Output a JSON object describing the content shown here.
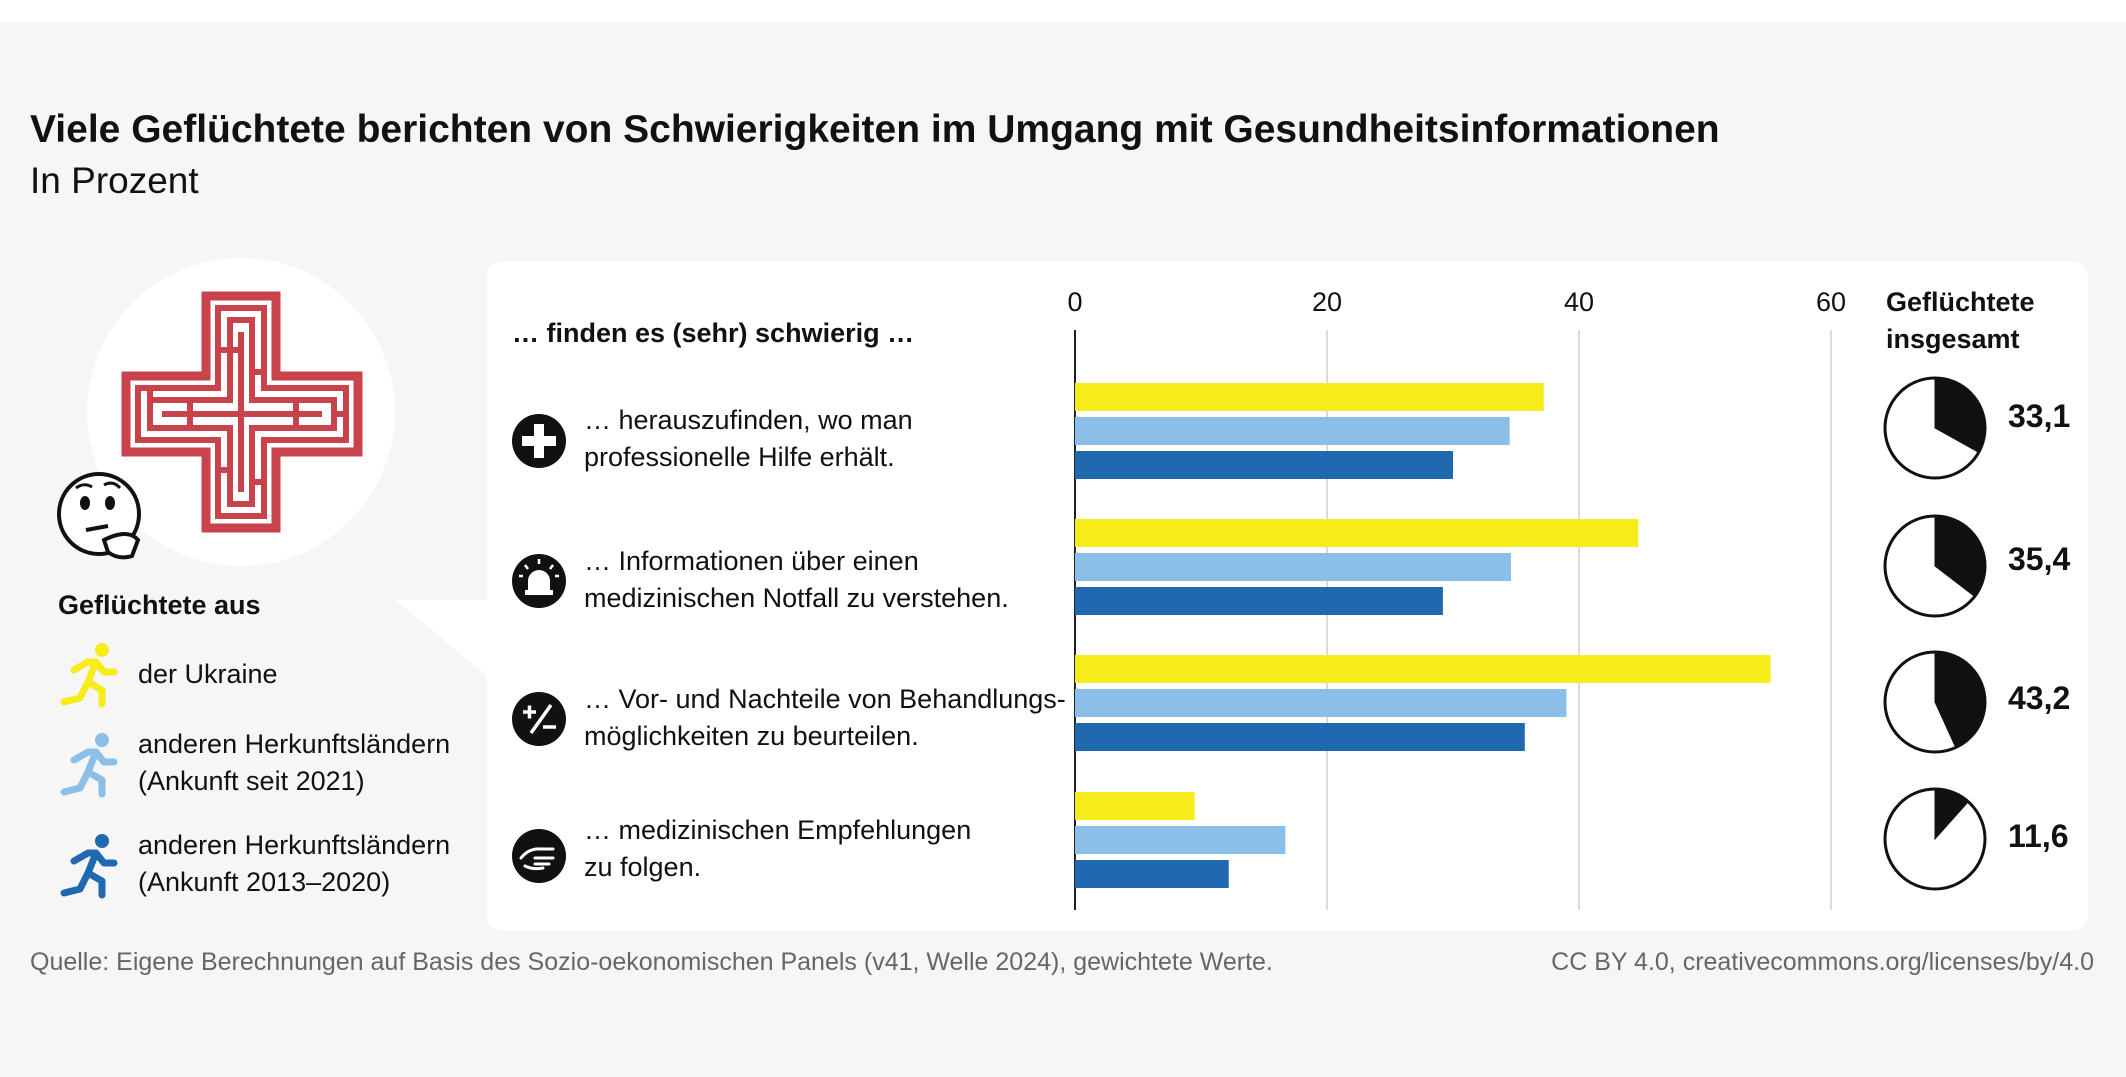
{
  "title": "Viele Geflüchtete berichten von Schwierigkeiten im Umgang mit Gesundheitsinformationen",
  "subtitle": "In Prozent",
  "column_header": "…  finden es (sehr) schwierig …",
  "totals_header": [
    "Geflüchtete",
    "insgesamt"
  ],
  "legend": {
    "title": "Geflüchtete aus",
    "items": [
      {
        "lines": [
          "der Ukraine"
        ],
        "color": "#f5ec1a",
        "icon": "running-person-icon"
      },
      {
        "lines": [
          "anderen Herkunftsländern",
          "(Ankunft seit 2021)"
        ],
        "color": "#8bbfe8",
        "icon": "running-person-icon"
      },
      {
        "lines": [
          "anderen Herkunftsländern",
          "(Ankunft 2013–2020)"
        ],
        "color": "#2069b0",
        "icon": "running-person-icon"
      }
    ]
  },
  "rows": [
    {
      "lines": [
        "… herauszufinden, wo man",
        "professionelle Hilfe erhält."
      ],
      "icon": "plus-icon"
    },
    {
      "lines": [
        "… Informationen über einen",
        "medizinischen Notfall zu verstehen."
      ],
      "icon": "siren-icon"
    },
    {
      "lines": [
        "… Vor- und Nachteile von Behandlungs-",
        "möglichkeiten zu beurteilen."
      ],
      "icon": "plus-minus-icon"
    },
    {
      "lines": [
        "… medizinischen Empfehlungen",
        "zu folgen."
      ],
      "icon": "hand-icon"
    }
  ],
  "chart_data": {
    "type": "bar",
    "orientation": "horizontal",
    "categories": [
      "… herauszufinden, wo man professionelle Hilfe erhält.",
      "… Informationen über einen medizinischen Notfall zu verstehen.",
      "… Vor- und Nachteile von Behandlungsmöglichkeiten zu beurteilen.",
      "… medizinischen Empfehlungen zu folgen."
    ],
    "series": [
      {
        "name": "der Ukraine",
        "color": "#f5ec1a",
        "values": [
          37.2,
          44.7,
          55.2,
          9.5
        ]
      },
      {
        "name": "anderen Herkunftsländern (Ankunft seit 2021)",
        "color": "#8bbfe8",
        "values": [
          34.5,
          34.6,
          39.0,
          16.7
        ]
      },
      {
        "name": "anderen Herkunftsländern (Ankunft 2013–2020)",
        "color": "#2069b0",
        "values": [
          30.0,
          29.2,
          35.7,
          12.2
        ]
      }
    ],
    "xlim": [
      0,
      60
    ],
    "ticks": [
      0,
      20,
      40,
      60
    ],
    "grid": true,
    "totals": [
      33.1,
      35.4,
      43.2,
      11.6
    ],
    "totals_display": [
      "33,1",
      "35,4",
      "43,2",
      "11,6"
    ]
  },
  "source": "Quelle: Eigene Berechnungen auf Basis des Sozio-oekonomischen Panels (v41, Welle 2024), gewichtete Werte.",
  "license": "CC BY 4.0, creativecommons.org/licenses/by/4.0"
}
